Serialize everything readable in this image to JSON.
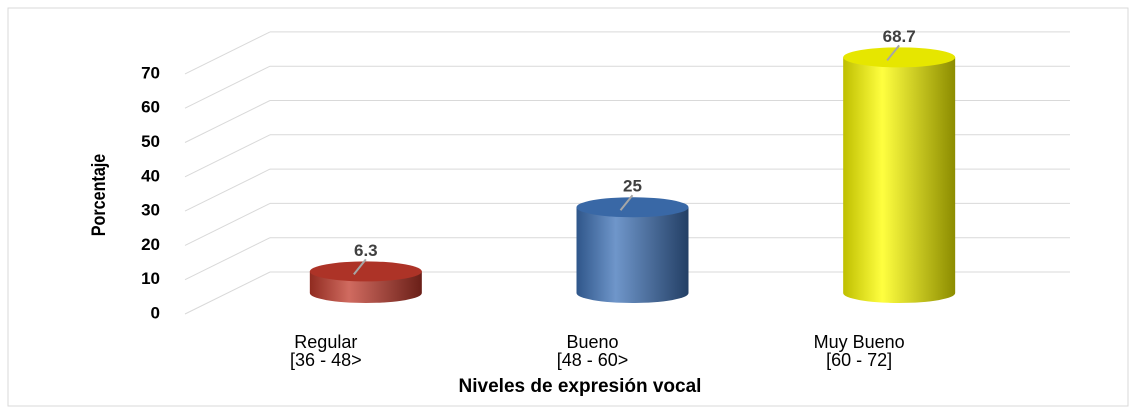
{
  "chart_data": {
    "type": "bar3d",
    "x_label": "Niveles de expresión vocal",
    "y_label": "Porcentaje",
    "categories": [
      [
        "Regular",
        "[36 - 48>"
      ],
      [
        "Bueno",
        "[48 - 60>"
      ],
      [
        "Muy Bueno",
        "[60 - 72]"
      ]
    ],
    "series": [
      {
        "name": "Porcentaje",
        "colors": [
          "#c0392b",
          "#3f73b8",
          "#ffff00"
        ],
        "values": [
          6.3,
          25,
          68.7
        ]
      }
    ],
    "ylim": [
      0,
      70
    ],
    "yticks": [
      0,
      10,
      20,
      30,
      40,
      50,
      60,
      70
    ],
    "grid": true
  }
}
